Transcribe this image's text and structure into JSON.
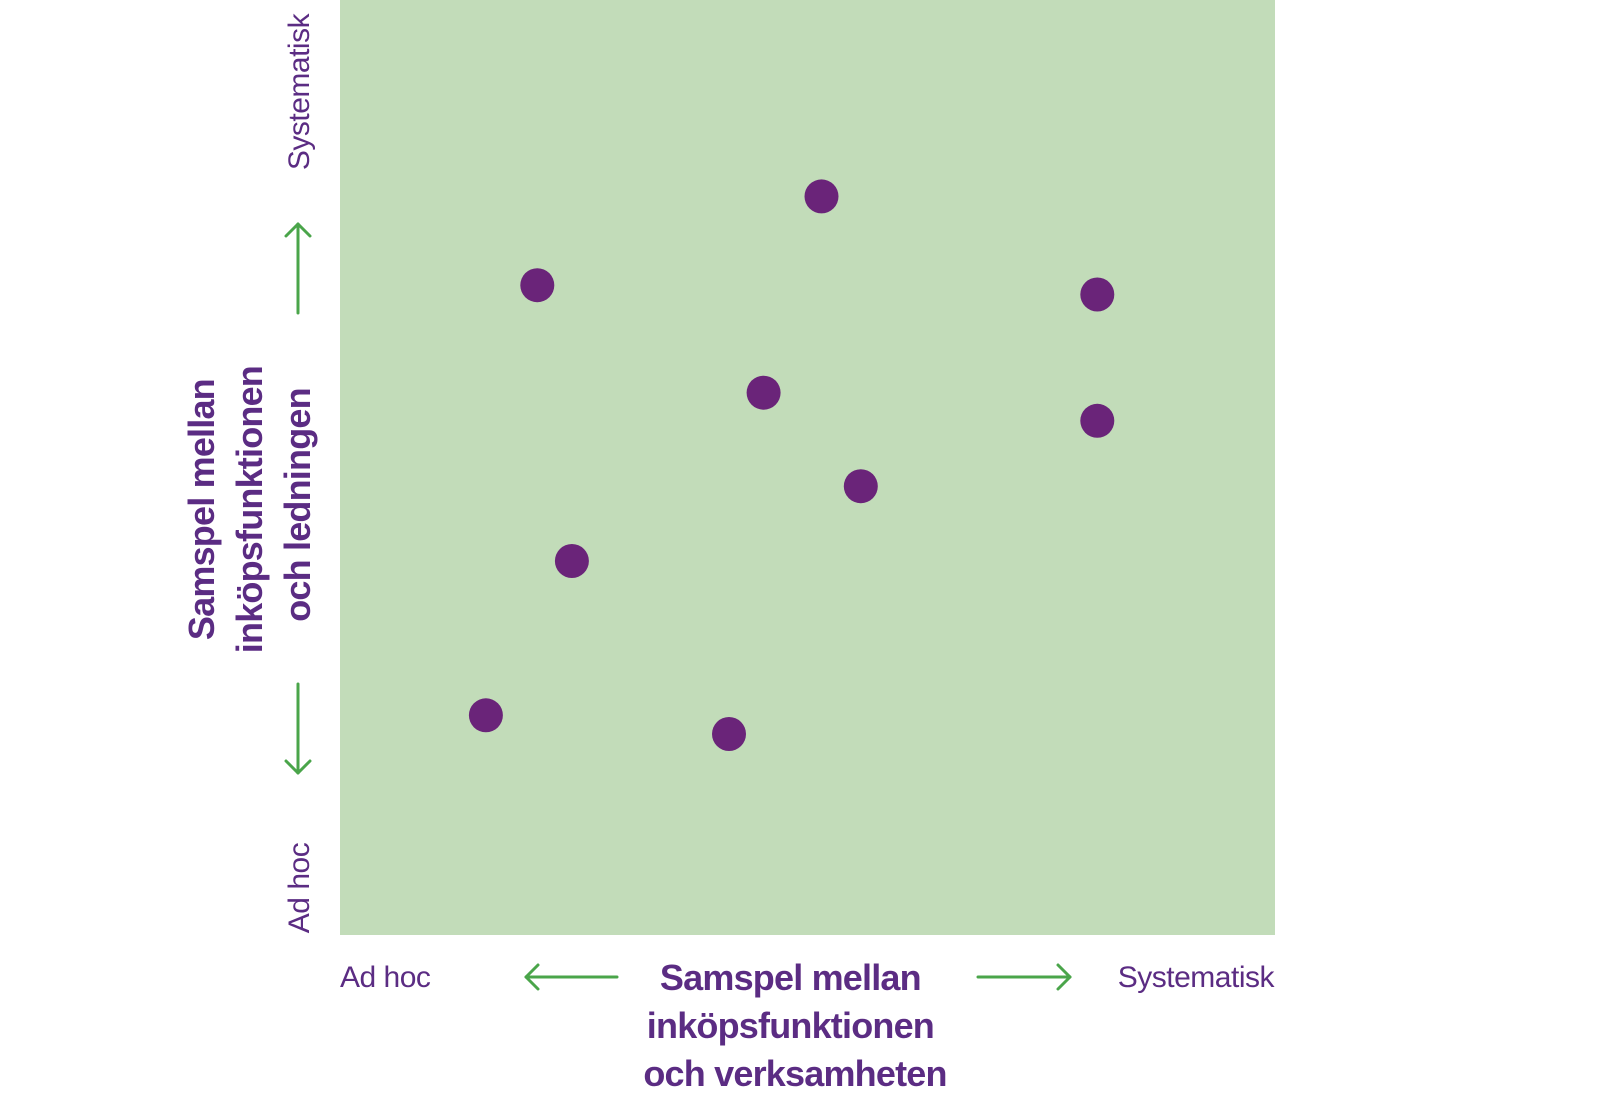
{
  "colors": {
    "plot_background": "#c2dcb9",
    "point": "#6a2479",
    "text": "#5b2c83",
    "arrow": "#4aa54a"
  },
  "chart_data": {
    "type": "scatter",
    "xlim": [
      0,
      100
    ],
    "ylim": [
      0,
      100
    ],
    "grid": false,
    "legend": "none",
    "x_axis": {
      "label_lines": [
        "Samspel mellan",
        "inköpsfunktionen",
        "och verksamheten"
      ],
      "low_label": "Ad hoc",
      "high_label": "Systematisk"
    },
    "y_axis": {
      "label_lines": [
        "Samspel mellan",
        "inköpsfunktionen",
        "och ledningen"
      ],
      "low_label": "Ad hoc",
      "high_label": "Systematisk"
    },
    "points": [
      {
        "x": 51.5,
        "y": 79.0
      },
      {
        "x": 21.1,
        "y": 69.5
      },
      {
        "x": 81.0,
        "y": 68.5
      },
      {
        "x": 45.3,
        "y": 58.0
      },
      {
        "x": 81.0,
        "y": 55.0
      },
      {
        "x": 55.7,
        "y": 48.0
      },
      {
        "x": 24.8,
        "y": 40.0
      },
      {
        "x": 15.6,
        "y": 23.5
      },
      {
        "x": 41.6,
        "y": 21.5
      }
    ]
  }
}
